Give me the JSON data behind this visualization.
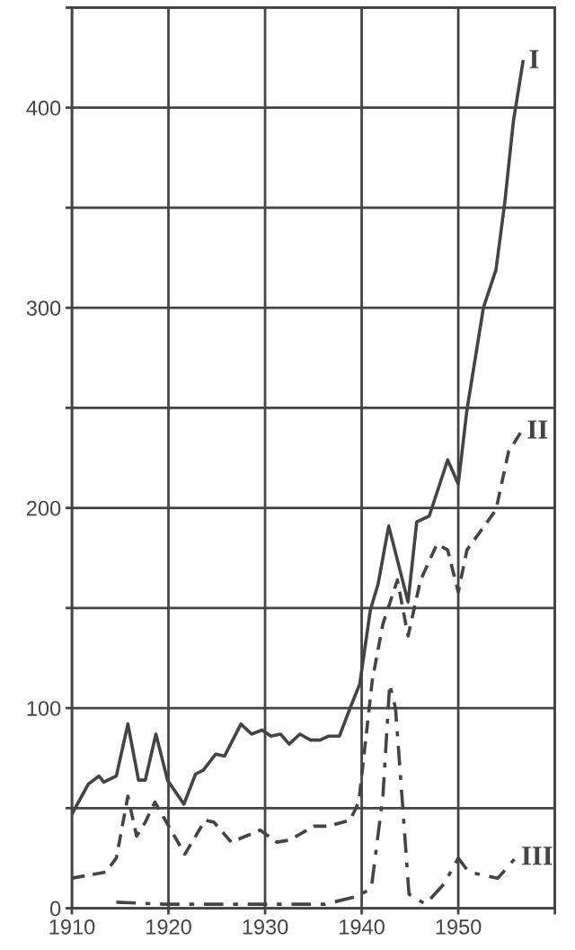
{
  "chart_data": {
    "type": "line",
    "xlim": [
      1910,
      1960
    ],
    "ylim": [
      0,
      450
    ],
    "xticks": [
      1910,
      1920,
      1930,
      1940,
      1950,
      {
        "value": 1960,
        "label": null
      }
    ],
    "yticks": [
      0,
      {
        "value": 50,
        "label": null
      },
      100,
      {
        "value": 150,
        "label": null
      },
      200,
      {
        "value": 250,
        "label": null
      },
      300,
      {
        "value": 350,
        "label": null
      },
      400,
      {
        "value": 450,
        "label": null
      }
    ],
    "grid": true,
    "series": [
      {
        "name": "I",
        "color": "#444444",
        "line_style": "solid",
        "x": [
          1910,
          1911.7,
          1912.8,
          1913.3,
          1914.6,
          1915.8,
          1916.9,
          1917.6,
          1918.7,
          1919.9,
          1920.6,
          1921.6,
          1922.8,
          1923.6,
          1924.9,
          1925.8,
          1927.5,
          1928.6,
          1929.7,
          1930.6,
          1931.6,
          1932.5,
          1933.6,
          1934.7,
          1935.7,
          1936.6,
          1937.7,
          1938.8,
          1939.8,
          1940.9,
          1941.7,
          1942.8,
          1944.8,
          1945.7,
          1947,
          1948.9,
          1950,
          1950.9,
          1952.6,
          1953.9,
          1954.8,
          1955.7,
          1956.7
        ],
        "values": [
          47,
          62,
          66,
          63,
          66,
          92,
          64,
          64,
          87,
          64,
          59,
          52,
          67,
          69,
          77,
          76,
          92,
          87,
          89,
          86,
          87,
          82,
          87,
          84,
          84,
          86,
          86,
          100,
          112,
          149,
          162,
          191,
          153,
          193,
          196,
          224,
          212,
          249,
          300,
          319,
          352,
          393,
          423
        ]
      },
      {
        "name": "II",
        "color": "#444444",
        "line_style": "dashed",
        "x": [
          1910,
          1913.5,
          1914.6,
          1915.8,
          1916.7,
          1917.6,
          1918.6,
          1919.9,
          1921.7,
          1923.8,
          1924.7,
          1926.5,
          1929.5,
          1931.2,
          1932.5,
          1935.1,
          1936.6,
          1938.8,
          1939.7,
          1941.1,
          1942.2,
          1943.7,
          1944.8,
          1946.1,
          1947.8,
          1948.9,
          1950,
          1950.9,
          1953.9,
          1955.2,
          1956.5
        ],
        "values": [
          15,
          18,
          25,
          56,
          36,
          43,
          53,
          42,
          27,
          44,
          43,
          33,
          39,
          33,
          34,
          41,
          41,
          44,
          53,
          114,
          142,
          164,
          136,
          164,
          182,
          179,
          158,
          179,
          199,
          228,
          238
        ]
      },
      {
        "name": "III",
        "color": "#444444",
        "line_style": "dashdot",
        "x": [
          1914.6,
          1919.5,
          1925.1,
          1932.5,
          1936.2,
          1939.6,
          1941,
          1942.2,
          1942.9,
          1943.5,
          1944.2,
          1944.9,
          1946.6,
          1948.5,
          1950,
          1951.1,
          1954.1,
          1955.9
        ],
        "values": [
          3,
          2,
          2,
          2,
          2,
          6,
          10,
          56,
          112,
          100,
          54,
          7,
          2,
          12,
          25,
          18,
          15,
          25
        ]
      }
    ]
  }
}
